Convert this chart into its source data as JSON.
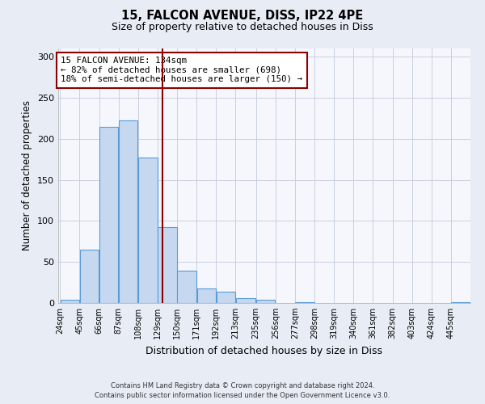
{
  "title1": "15, FALCON AVENUE, DISS, IP22 4PE",
  "title2": "Size of property relative to detached houses in Diss",
  "xlabel": "Distribution of detached houses by size in Diss",
  "ylabel": "Number of detached properties",
  "footer1": "Contains HM Land Registry data © Crown copyright and database right 2024.",
  "footer2": "Contains public sector information licensed under the Open Government Licence v3.0.",
  "bin_labels": [
    "24sqm",
    "45sqm",
    "66sqm",
    "87sqm",
    "108sqm",
    "129sqm",
    "150sqm",
    "171sqm",
    "192sqm",
    "213sqm",
    "235sqm",
    "256sqm",
    "277sqm",
    "298sqm",
    "319sqm",
    "340sqm",
    "361sqm",
    "382sqm",
    "403sqm",
    "424sqm",
    "445sqm"
  ],
  "bar_values": [
    4,
    65,
    215,
    222,
    177,
    93,
    39,
    18,
    14,
    6,
    4,
    0,
    1,
    0,
    0,
    0,
    0,
    0,
    0,
    0,
    1
  ],
  "bin_edges": [
    24,
    45,
    66,
    87,
    108,
    129,
    150,
    171,
    192,
    213,
    235,
    256,
    277,
    298,
    319,
    340,
    361,
    382,
    403,
    424,
    445,
    466
  ],
  "bar_color": "#c5d8f0",
  "bar_edge_color": "#5b9bd5",
  "vline_x": 134,
  "vline_color": "#8b0000",
  "annotation_title": "15 FALCON AVENUE: 134sqm",
  "annotation_line1": "← 82% of detached houses are smaller (698)",
  "annotation_line2": "18% of semi-detached houses are larger (150) →",
  "annotation_box_edge_color": "#8b0000",
  "ylim": [
    0,
    310
  ],
  "yticks": [
    0,
    50,
    100,
    150,
    200,
    250,
    300
  ],
  "bg_color": "#e8edf5",
  "plot_bg_color": "#f5f7fc",
  "grid_color": "#c8cfe0"
}
